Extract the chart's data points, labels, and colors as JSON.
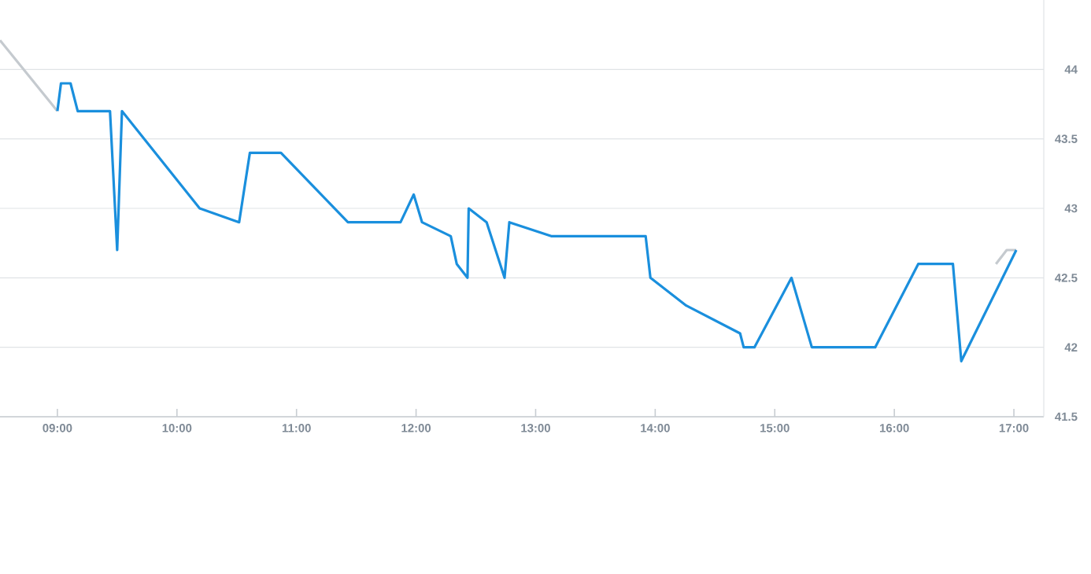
{
  "chart_data": {
    "type": "line",
    "xlim": [
      8.52,
      17.25
    ],
    "ylim": [
      41.5,
      44.5
    ],
    "xticks": [
      {
        "value": 9,
        "label": "09:00"
      },
      {
        "value": 10,
        "label": "10:00"
      },
      {
        "value": 11,
        "label": "11:00"
      },
      {
        "value": 12,
        "label": "12:00"
      },
      {
        "value": 13,
        "label": "13:00"
      },
      {
        "value": 14,
        "label": "14:00"
      },
      {
        "value": 15,
        "label": "15:00"
      },
      {
        "value": 16,
        "label": "16:00"
      },
      {
        "value": 17,
        "label": "17:00"
      }
    ],
    "yticks": [
      41.5,
      42,
      42.5,
      43,
      43.5,
      44
    ],
    "grid": "y",
    "legend": false,
    "marker": "none",
    "line_style": "solid",
    "series": [
      {
        "color": "#c5cacf",
        "x": [
          8.52,
          9.0
        ],
        "values": [
          44.21,
          43.7
        ]
      },
      {
        "color": "#c5cacf",
        "x": [
          16.85,
          16.94,
          17.02
        ],
        "values": [
          42.6,
          42.7,
          42.7
        ]
      },
      {
        "color": "#1a8fdd",
        "x": [
          9.0,
          9.03,
          9.11,
          9.17,
          9.44,
          9.5,
          9.54,
          10.19,
          10.52,
          10.61,
          10.87,
          11.43,
          11.87,
          11.98,
          12.05,
          12.29,
          12.34,
          12.43,
          12.44,
          12.59,
          12.74,
          12.78,
          13.13,
          13.92,
          13.96,
          14.26,
          14.71,
          14.74,
          14.83,
          15.14,
          15.31,
          15.84,
          16.2,
          16.49,
          16.56,
          17.02
        ],
        "values": [
          43.7,
          43.9,
          43.9,
          43.7,
          43.7,
          42.7,
          43.7,
          43.0,
          42.9,
          43.4,
          43.4,
          42.9,
          42.9,
          43.1,
          42.9,
          42.8,
          42.6,
          42.5,
          43.0,
          42.9,
          42.5,
          42.9,
          42.8,
          42.8,
          42.5,
          42.3,
          42.1,
          42.0,
          42.0,
          42.5,
          42.0,
          42.0,
          42.6,
          42.6,
          41.9,
          42.7
        ]
      }
    ]
  }
}
